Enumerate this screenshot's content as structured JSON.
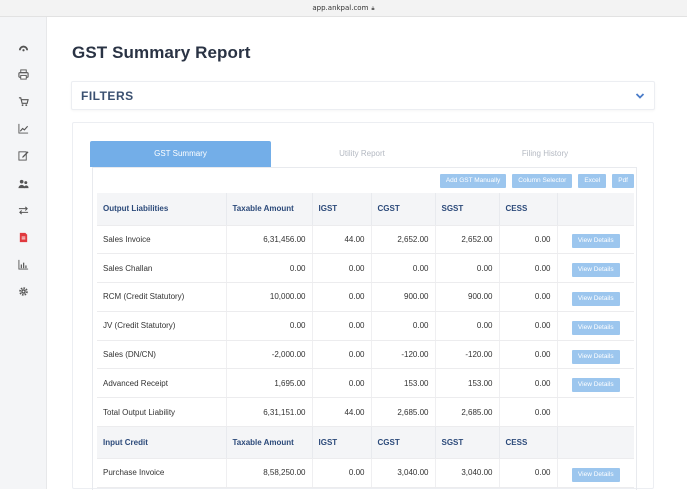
{
  "browser": {
    "url": "app.ankpal.com"
  },
  "sidebar": {
    "items": [
      {
        "icon": "dashboard-icon"
      },
      {
        "icon": "printer-icon"
      },
      {
        "icon": "cart-icon"
      },
      {
        "icon": "line-chart-icon"
      },
      {
        "icon": "edit-icon"
      },
      {
        "icon": "users-icon"
      },
      {
        "icon": "transfer-icon"
      },
      {
        "icon": "document-icon",
        "active": true
      },
      {
        "icon": "bar-chart-icon"
      },
      {
        "icon": "settings-icon"
      }
    ],
    "active_color": "#e0393e"
  },
  "page": {
    "title": "GST Summary Report"
  },
  "filters": {
    "title": "FILTERS"
  },
  "tabs": [
    {
      "label": "GST Summary",
      "active": true
    },
    {
      "label": "Utility Report"
    },
    {
      "label": "Filing History"
    }
  ],
  "toolbar": {
    "add_gst": "Add GST Manually",
    "column_selector": "Column Selector",
    "excel": "Excel",
    "pdf": "Pdf"
  },
  "output_header": [
    "Output Liabilities",
    "Taxable Amount",
    "IGST",
    "CGST",
    "SGST",
    "CESS"
  ],
  "output_rows": [
    {
      "name": "Sales Invoice",
      "taxable": "6,31,456.00",
      "igst": "44.00",
      "cgst": "2,652.00",
      "sgst": "2,652.00",
      "cess": "0.00",
      "action": "View Details"
    },
    {
      "name": "Sales Challan",
      "taxable": "0.00",
      "igst": "0.00",
      "cgst": "0.00",
      "sgst": "0.00",
      "cess": "0.00",
      "action": "View Details"
    },
    {
      "name": "RCM (Credit Statutory)",
      "taxable": "10,000.00",
      "igst": "0.00",
      "cgst": "900.00",
      "sgst": "900.00",
      "cess": "0.00",
      "action": "View Details"
    },
    {
      "name": "JV (Credit Statutory)",
      "taxable": "0.00",
      "igst": "0.00",
      "cgst": "0.00",
      "sgst": "0.00",
      "cess": "0.00",
      "action": "View Details"
    },
    {
      "name": "Sales (DN/CN)",
      "taxable": "-2,000.00",
      "igst": "0.00",
      "cgst": "-120.00",
      "sgst": "-120.00",
      "cess": "0.00",
      "action": "View Details"
    },
    {
      "name": "Advanced Receipt",
      "taxable": "1,695.00",
      "igst": "0.00",
      "cgst": "153.00",
      "sgst": "153.00",
      "cess": "0.00",
      "action": "View Details"
    },
    {
      "name": "Total Output Liability",
      "taxable": "6,31,151.00",
      "igst": "44.00",
      "cgst": "2,685.00",
      "sgst": "2,685.00",
      "cess": "0.00"
    }
  ],
  "input_header": [
    "Input Credit",
    "Taxable Amount",
    "IGST",
    "CGST",
    "SGST",
    "CESS"
  ],
  "input_rows": [
    {
      "name": "Purchase Invoice",
      "taxable": "8,58,250.00",
      "igst": "0.00",
      "cgst": "3,040.00",
      "sgst": "3,040.00",
      "cess": "0.00",
      "action": "View Details"
    }
  ]
}
